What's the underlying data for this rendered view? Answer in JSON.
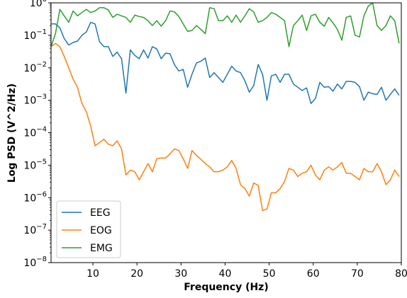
{
  "chart_data": {
    "type": "line",
    "title": "",
    "xlabel": "Frequency (Hz)",
    "ylabel": "Log PSD (V^2/Hz)",
    "xlim": [
      0.5,
      80
    ],
    "ylim_log10": [
      -8,
      0
    ],
    "yscale": "log",
    "x_ticks": [
      10,
      20,
      30,
      40,
      50,
      60,
      70,
      80
    ],
    "x_tick_labels": [
      "10",
      "20",
      "30",
      "40",
      "50",
      "60",
      "70",
      "80"
    ],
    "y_ticks_log10": [
      0,
      -1,
      -2,
      -3,
      -4,
      -5,
      -6,
      -7,
      -8
    ],
    "legend_position": "lower-left",
    "grid": false,
    "x": [
      0.5,
      1.5,
      2.5,
      3.5,
      4.5,
      5.5,
      6.5,
      7.5,
      8.5,
      9.5,
      10.5,
      11.5,
      12.5,
      13.5,
      14.5,
      15.5,
      16.5,
      17.5,
      18.5,
      19.5,
      20.5,
      21.5,
      22.5,
      23.5,
      24.5,
      25.5,
      26.5,
      27.5,
      28.5,
      29.5,
      30.5,
      31.5,
      32.5,
      33.5,
      34.5,
      35.5,
      36.5,
      37.5,
      38.5,
      39.5,
      40.5,
      41.5,
      42.5,
      43.5,
      44.5,
      45.5,
      46.5,
      47.5,
      48.5,
      49.5,
      50.5,
      51.5,
      52.5,
      53.5,
      54.5,
      55.5,
      56.5,
      57.5,
      58.5,
      59.5,
      60.5,
      61.5,
      62.5,
      63.5,
      64.5,
      65.5,
      66.5,
      67.5,
      68.5,
      69.5,
      70.5,
      71.5,
      72.5,
      73.5,
      74.5,
      75.5,
      76.5,
      77.5,
      78.5,
      79.5
    ],
    "series": [
      {
        "name": "EEG",
        "color": "#1f77b4",
        "log10_values": [
          -0.65,
          -0.65,
          -0.77,
          -1.1,
          -1.3,
          -1.22,
          -1.18,
          -1.0,
          -0.9,
          -0.6,
          -0.65,
          -1.2,
          -1.35,
          -1.35,
          -1.65,
          -1.52,
          -1.72,
          -2.78,
          -1.45,
          -1.62,
          -1.72,
          -1.45,
          -1.7,
          -1.35,
          -1.42,
          -1.72,
          -1.55,
          -1.57,
          -1.9,
          -2.1,
          -2.05,
          -2.6,
          -2.2,
          -1.85,
          -1.8,
          -1.7,
          -2.3,
          -2.15,
          -2.3,
          -2.45,
          -2.2,
          -1.95,
          -2.1,
          -2.15,
          -2.4,
          -2.75,
          -2.55,
          -1.9,
          -2.2,
          -3.0,
          -2.25,
          -2.2,
          -2.45,
          -2.2,
          -2.2,
          -2.5,
          -2.6,
          -2.7,
          -2.62,
          -3.1,
          -2.95,
          -2.45,
          -2.6,
          -2.58,
          -2.72,
          -2.5,
          -2.65,
          -2.42,
          -2.42,
          -2.45,
          -2.58,
          -3.0,
          -2.75,
          -2.8,
          -2.82,
          -2.6,
          -3.0,
          -2.82,
          -2.65,
          -2.85
        ]
      },
      {
        "name": "EOG",
        "color": "#ff7f0e",
        "log10_values": [
          -1.35,
          -1.25,
          -1.35,
          -1.65,
          -2.0,
          -2.35,
          -2.6,
          -3.1,
          -3.35,
          -3.8,
          -4.4,
          -4.3,
          -4.2,
          -4.35,
          -4.4,
          -4.25,
          -4.5,
          -5.3,
          -5.15,
          -5.2,
          -5.45,
          -5.2,
          -4.95,
          -5.2,
          -4.8,
          -4.78,
          -4.78,
          -4.65,
          -4.5,
          -4.55,
          -4.8,
          -5.1,
          -4.55,
          -4.7,
          -4.82,
          -4.95,
          -5.05,
          -5.2,
          -5.2,
          -5.15,
          -5.05,
          -4.85,
          -5.1,
          -5.6,
          -5.72,
          -5.95,
          -5.55,
          -5.62,
          -6.4,
          -6.35,
          -5.85,
          -5.85,
          -5.72,
          -5.5,
          -5.1,
          -5.15,
          -5.35,
          -5.25,
          -5.2,
          -5.0,
          -5.3,
          -5.45,
          -5.15,
          -5.05,
          -5.15,
          -5.05,
          -4.92,
          -5.25,
          -5.25,
          -5.35,
          -5.45,
          -5.1,
          -5.2,
          -5.2,
          -4.95,
          -5.2,
          -5.6,
          -5.45,
          -5.15,
          -5.35
        ]
      },
      {
        "name": "EMG",
        "color": "#2ca02c",
        "log10_values": [
          -1.35,
          -0.95,
          -0.2,
          -0.4,
          -0.6,
          -0.25,
          -0.4,
          -0.3,
          -0.2,
          -0.3,
          -0.25,
          -0.15,
          -0.15,
          -0.22,
          -0.45,
          -0.35,
          -0.4,
          -0.45,
          -0.6,
          -0.38,
          -0.42,
          -0.45,
          -0.55,
          -0.7,
          -0.55,
          -0.72,
          -0.55,
          -0.25,
          -0.28,
          -0.42,
          -0.65,
          -0.88,
          -0.85,
          -0.7,
          -0.82,
          -0.95,
          -0.15,
          -0.18,
          -0.55,
          -0.55,
          -0.4,
          -0.6,
          -0.38,
          -0.6,
          -0.4,
          -0.18,
          -0.28,
          -0.6,
          -0.55,
          -0.45,
          -0.3,
          -0.35,
          -0.45,
          -0.55,
          -1.35,
          -0.7,
          -0.55,
          -0.38,
          -0.85,
          -0.4,
          -0.35,
          -0.6,
          -0.72,
          -0.45,
          -0.62,
          -0.82,
          -1.15,
          -0.45,
          -0.4,
          -1.0,
          -1.05,
          -0.4,
          -0.1,
          0.0,
          -0.7,
          -0.85,
          -0.7,
          -0.4,
          -0.55,
          -1.25
        ]
      }
    ]
  }
}
